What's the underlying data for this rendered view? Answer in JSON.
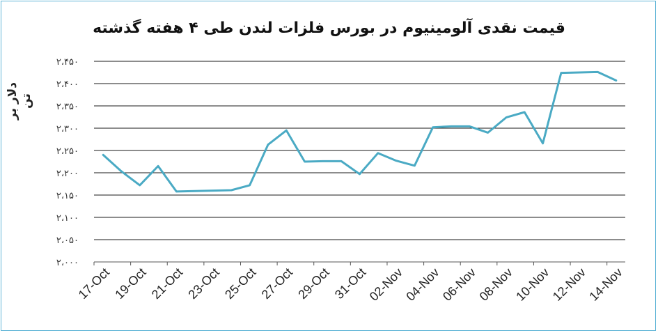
{
  "chart_data": {
    "type": "line",
    "title": "قیمت نقدی آلومینیوم در بورس فلزات لندن طی ۴ هفته گذشته",
    "ylabel": "دلار بر تن",
    "xlabel": "",
    "ylim": [
      2000,
      2450
    ],
    "yticks": [
      2000,
      2050,
      2100,
      2150,
      2200,
      2250,
      2300,
      2350,
      2400,
      2450
    ],
    "ytick_labels": [
      "۲،۰۰۰",
      "۲،۰۵۰",
      "۲،۱۰۰",
      "۲،۱۵۰",
      "۲،۲۰۰",
      "۲،۲۵۰",
      "۲،۳۰۰",
      "۲،۳۵۰",
      "۲،۴۰۰",
      "۲،۴۵۰"
    ],
    "xtick_labels": [
      "17-Oct",
      "19-Oct",
      "21-Oct",
      "23-Oct",
      "25-Oct",
      "27-Oct",
      "29-Oct",
      "31-Oct",
      "02-Nov",
      "04-Nov",
      "06-Nov",
      "08-Nov",
      "10-Nov",
      "12-Nov",
      "14-Nov"
    ],
    "grid": true,
    "line_color": "#4aaac4",
    "series": [
      {
        "x": [
          "17-Oct",
          "18-Oct",
          "19-Oct",
          "20-Oct",
          "21-Oct",
          "24-Oct",
          "25-Oct",
          "26-Oct",
          "27-Oct",
          "28-Oct",
          "29-Oct",
          "30-Oct",
          "31-Oct",
          "01-Nov",
          "02-Nov",
          "03-Nov",
          "04-Nov",
          "05-Nov",
          "06-Nov",
          "07-Nov",
          "08-Nov",
          "09-Nov",
          "10-Nov",
          "11-Nov",
          "13-Nov",
          "14-Nov"
        ],
        "values": [
          2240,
          2203,
          2172,
          2215,
          2158,
          2161,
          2172,
          2263,
          2295,
          2225,
          2226,
          2226,
          2197,
          2244,
          2227,
          2216,
          2302,
          2304,
          2304,
          2290,
          2324,
          2336,
          2266,
          2424,
          2426,
          2407
        ]
      }
    ]
  }
}
